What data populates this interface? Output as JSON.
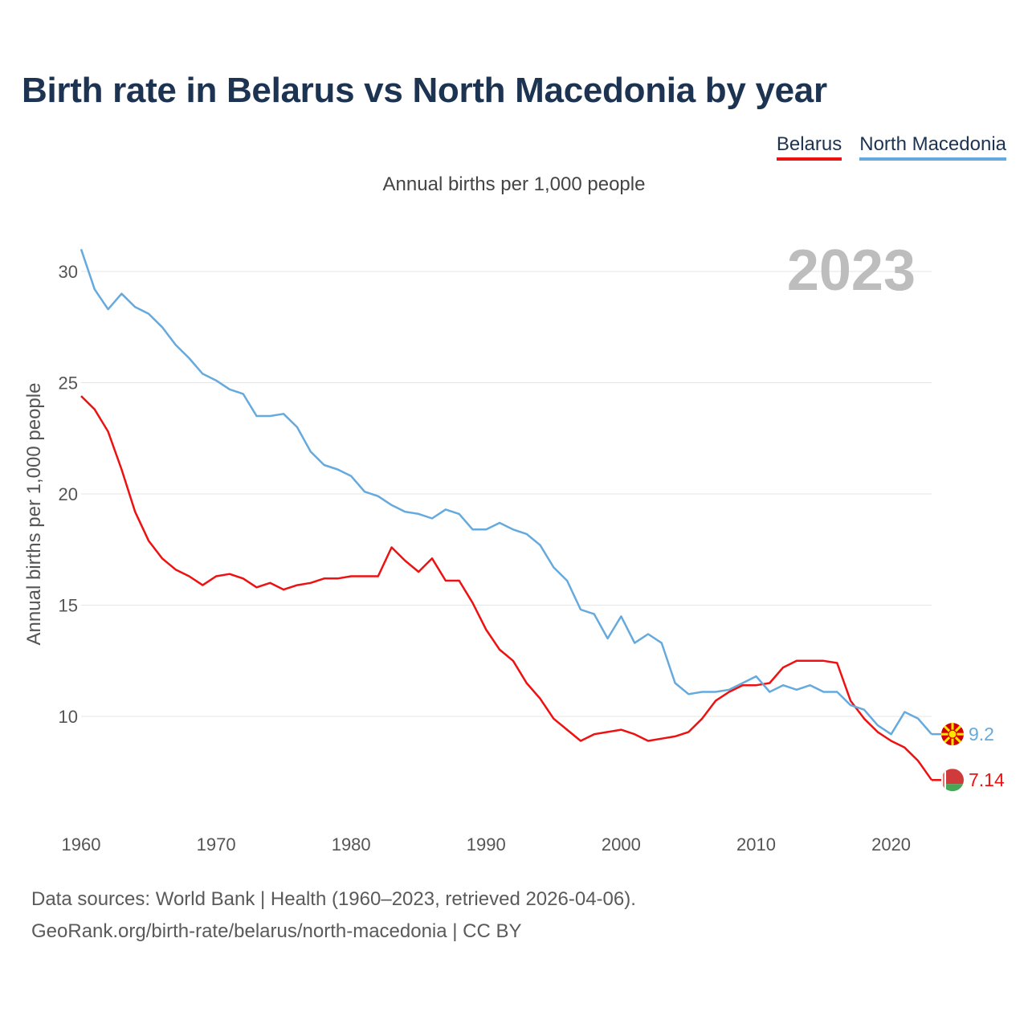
{
  "title": "Birth rate in Belarus vs North Macedonia by year",
  "subtitle": "Annual births per 1,000 people",
  "year_label": "2023",
  "legend": [
    {
      "name": "Belarus",
      "color": "#ee1111"
    },
    {
      "name": "North Macedonia",
      "color": "#66aadd"
    }
  ],
  "source": {
    "line1": "Data sources: World Bank | Health (1960–2023, retrieved 2026-04-06).",
    "line2": "GeoRank.org/birth-rate/belarus/north-macedonia | CC BY"
  },
  "chart_data": {
    "type": "line",
    "title": "Birth rate in Belarus vs North Macedonia by year",
    "ylabel": "Annual births per 1,000 people",
    "xlabel": "",
    "xlim": [
      1960,
      2023
    ],
    "ylim": [
      5,
      31.5
    ],
    "xticks": [
      1960,
      1970,
      1980,
      1990,
      2000,
      2010,
      2020
    ],
    "yticks": [
      10,
      15,
      20,
      25,
      30
    ],
    "grid": true,
    "legend_position": "top-right",
    "x": [
      1960,
      1961,
      1962,
      1963,
      1964,
      1965,
      1966,
      1967,
      1968,
      1969,
      1970,
      1971,
      1972,
      1973,
      1974,
      1975,
      1976,
      1977,
      1978,
      1979,
      1980,
      1981,
      1982,
      1983,
      1984,
      1985,
      1986,
      1987,
      1988,
      1989,
      1990,
      1991,
      1992,
      1993,
      1994,
      1995,
      1996,
      1997,
      1998,
      1999,
      2000,
      2001,
      2002,
      2003,
      2004,
      2005,
      2006,
      2007,
      2008,
      2009,
      2010,
      2011,
      2012,
      2013,
      2014,
      2015,
      2016,
      2017,
      2018,
      2019,
      2020,
      2021,
      2022,
      2023
    ],
    "series": [
      {
        "name": "Belarus",
        "color": "#ee1111",
        "end_label": "7.14",
        "values": [
          24.4,
          23.8,
          22.8,
          21.1,
          19.2,
          17.9,
          17.1,
          16.6,
          16.3,
          15.9,
          16.3,
          16.4,
          16.2,
          15.8,
          16.0,
          15.7,
          15.9,
          16.0,
          16.2,
          16.2,
          16.3,
          16.3,
          16.3,
          17.6,
          17.0,
          16.5,
          17.1,
          16.1,
          16.1,
          15.1,
          13.9,
          13.0,
          12.5,
          11.5,
          10.8,
          9.9,
          9.4,
          8.9,
          9.2,
          9.3,
          9.4,
          9.2,
          8.9,
          9.0,
          9.1,
          9.3,
          9.9,
          10.7,
          11.1,
          11.4,
          11.4,
          11.5,
          12.2,
          12.5,
          12.5,
          12.5,
          12.4,
          10.7,
          9.9,
          9.3,
          8.9,
          8.6,
          8.0,
          7.14
        ]
      },
      {
        "name": "North Macedonia",
        "color": "#66aadd",
        "end_label": "9.2",
        "values": [
          31.0,
          29.2,
          28.3,
          29.0,
          28.4,
          28.1,
          27.5,
          26.7,
          26.1,
          25.4,
          25.1,
          24.7,
          24.5,
          23.5,
          23.5,
          23.6,
          23.0,
          21.9,
          21.3,
          21.1,
          20.8,
          20.1,
          19.9,
          19.5,
          19.2,
          19.1,
          18.9,
          19.3,
          19.1,
          18.4,
          18.4,
          18.7,
          18.4,
          18.2,
          17.7,
          16.7,
          16.1,
          14.8,
          14.6,
          13.5,
          14.5,
          13.3,
          13.7,
          13.3,
          11.5,
          11.0,
          11.1,
          11.1,
          11.2,
          11.5,
          11.8,
          11.1,
          11.4,
          11.2,
          11.4,
          11.1,
          11.1,
          10.5,
          10.3,
          9.6,
          9.2,
          10.2,
          9.9,
          9.2
        ]
      }
    ]
  }
}
